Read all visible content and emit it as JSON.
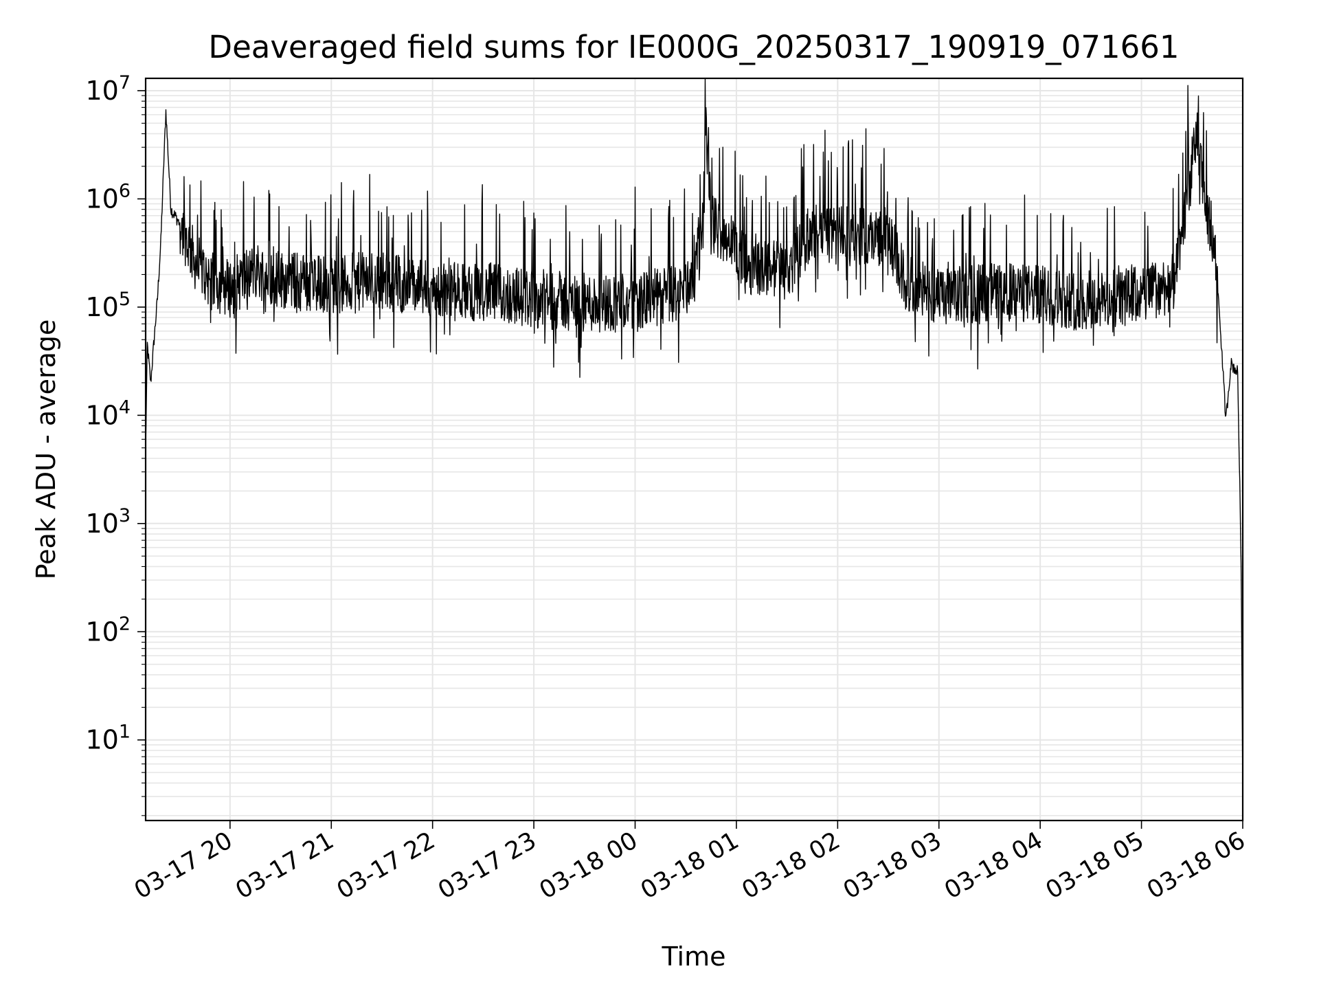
{
  "chart_data": {
    "type": "line",
    "title": "Deaveraged field sums for IE000G_20250317_190919_071661",
    "xlabel": "Time",
    "ylabel": "Peak ADU - average",
    "y_scale": "log",
    "ylim": [
      1.8,
      13000000
    ],
    "xlim": [
      "2025-03-17T19:10:00",
      "2025-03-18T06:00:00"
    ],
    "grid": true,
    "legend": "none",
    "line_color": "#000000",
    "x_ticks": [
      {
        "value": "2025-03-17T20:00:00",
        "label": "03-17 20"
      },
      {
        "value": "2025-03-17T21:00:00",
        "label": "03-17 21"
      },
      {
        "value": "2025-03-17T22:00:00",
        "label": "03-17 22"
      },
      {
        "value": "2025-03-17T23:00:00",
        "label": "03-17 23"
      },
      {
        "value": "2025-03-18T00:00:00",
        "label": "03-18 00"
      },
      {
        "value": "2025-03-18T01:00:00",
        "label": "03-18 01"
      },
      {
        "value": "2025-03-18T02:00:00",
        "label": "03-18 02"
      },
      {
        "value": "2025-03-18T03:00:00",
        "label": "03-18 03"
      },
      {
        "value": "2025-03-18T04:00:00",
        "label": "03-18 04"
      },
      {
        "value": "2025-03-18T05:00:00",
        "label": "03-18 05"
      },
      {
        "value": "2025-03-18T06:00:00",
        "label": "03-18 06"
      }
    ],
    "y_ticks": [
      {
        "value": 10,
        "base": "10",
        "exp": "1"
      },
      {
        "value": 100,
        "base": "10",
        "exp": "2"
      },
      {
        "value": 1000,
        "base": "10",
        "exp": "3"
      },
      {
        "value": 10000,
        "base": "10",
        "exp": "4"
      },
      {
        "value": 100000,
        "base": "10",
        "exp": "5"
      },
      {
        "value": 1000000,
        "base": "10",
        "exp": "6"
      },
      {
        "value": 10000000,
        "base": "10",
        "exp": "7"
      }
    ],
    "series": [
      {
        "points": [
          [
            "2025-03-17T19:10:00",
            5000
          ],
          [
            "2025-03-17T19:11:00",
            45000
          ],
          [
            "2025-03-17T19:13:00",
            20000
          ],
          [
            "2025-03-17T19:15:00",
            50000
          ],
          [
            "2025-03-17T19:17:00",
            120000
          ],
          [
            "2025-03-17T19:19:00",
            400000
          ],
          [
            "2025-03-17T19:21:00",
            2700000
          ],
          [
            "2025-03-17T19:22:00",
            6500000
          ],
          [
            "2025-03-17T19:25:00",
            800000
          ],
          [
            "2025-03-17T19:30:00",
            600000
          ],
          [
            "2025-03-17T19:35:00",
            400000
          ],
          [
            "2025-03-17T19:40:00",
            250000
          ],
          [
            "2025-03-17T19:50:00",
            170000
          ],
          [
            "2025-03-17T20:00:00",
            150000
          ],
          [
            "2025-03-17T20:15:00",
            220000
          ],
          [
            "2025-03-17T20:30:00",
            180000
          ],
          [
            "2025-03-17T21:00:00",
            160000
          ],
          [
            "2025-03-17T21:30:00",
            180000
          ],
          [
            "2025-03-17T22:00:00",
            140000
          ],
          [
            "2025-03-17T22:30:00",
            140000
          ],
          [
            "2025-03-17T23:00:00",
            120000
          ],
          [
            "2025-03-17T23:30:00",
            110000
          ],
          [
            "2025-03-18T00:00:00",
            110000
          ],
          [
            "2025-03-18T00:30:00",
            140000
          ],
          [
            "2025-03-18T00:40:00",
            400000
          ],
          [
            "2025-03-18T00:42:00",
            4700000
          ],
          [
            "2025-03-18T00:45:00",
            600000
          ],
          [
            "2025-03-18T00:55:00",
            450000
          ],
          [
            "2025-03-18T01:05:00",
            250000
          ],
          [
            "2025-03-18T01:30:00",
            220000
          ],
          [
            "2025-03-18T01:45:00",
            500000
          ],
          [
            "2025-03-18T02:00:00",
            450000
          ],
          [
            "2025-03-18T02:30:00",
            450000
          ],
          [
            "2025-03-18T02:40:00",
            170000
          ],
          [
            "2025-03-18T03:00:00",
            120000
          ],
          [
            "2025-03-18T03:30:00",
            140000
          ],
          [
            "2025-03-18T04:00:00",
            130000
          ],
          [
            "2025-03-18T04:30:00",
            110000
          ],
          [
            "2025-03-18T05:00:00",
            130000
          ],
          [
            "2025-03-18T05:20:00",
            170000
          ],
          [
            "2025-03-18T05:25:00",
            600000
          ],
          [
            "2025-03-18T05:33:00",
            4200000
          ],
          [
            "2025-03-18T05:37:00",
            1000000
          ],
          [
            "2025-03-18T05:43:00",
            400000
          ],
          [
            "2025-03-18T05:46:00",
            100000
          ],
          [
            "2025-03-18T05:48:00",
            30000
          ],
          [
            "2025-03-18T05:50:00",
            9000
          ],
          [
            "2025-03-18T05:53:00",
            30000
          ],
          [
            "2025-03-18T05:57:00",
            25000
          ],
          [
            "2025-03-18T05:59:00",
            500
          ],
          [
            "2025-03-18T06:00:00",
            3.5
          ]
        ]
      }
    ]
  }
}
